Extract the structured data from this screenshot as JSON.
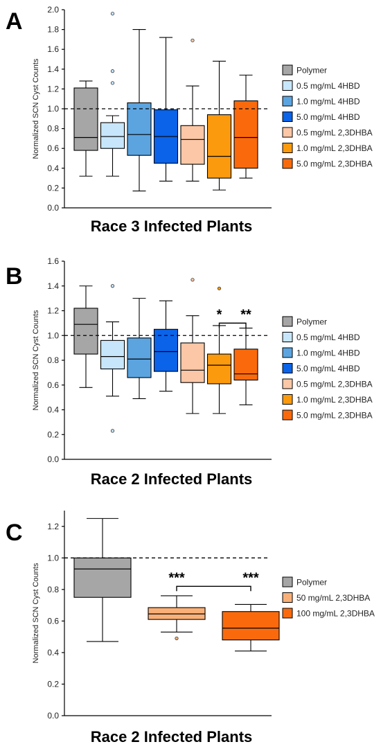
{
  "figure": {
    "panels": [
      {
        "letter": "A",
        "title": "Race 3 Infected Plants"
      },
      {
        "letter": "B",
        "title": "Race 2 Infected Plants"
      },
      {
        "letter": "C",
        "title": "Race 2 Infected Plants"
      }
    ]
  },
  "chart_data": [
    {
      "type": "box",
      "panel": "A",
      "title": "Race 3 Infected Plants",
      "ylabel": "Normalized SCN Cyst Counts",
      "ylim": [
        0,
        2.0
      ],
      "yticks": [
        "0.0",
        "0.2",
        "0.4",
        "0.6",
        "0.8",
        "1.0",
        "1.2",
        "1.4",
        "1.6",
        "1.8",
        "2.0"
      ],
      "reference_line": 1.0,
      "legend_position": "right",
      "series": [
        {
          "name": "Polymer",
          "color": "#a6a6a6",
          "min": 0.32,
          "q1": 0.58,
          "median": 0.71,
          "q3": 1.21,
          "max": 1.28,
          "outliers": []
        },
        {
          "name": "0.5 mg/mL 4HBD",
          "color": "#c7e6fb",
          "min": 0.32,
          "q1": 0.6,
          "median": 0.72,
          "q3": 0.86,
          "max": 0.93,
          "outliers": [
            1.26,
            1.38,
            1.96
          ]
        },
        {
          "name": "1.0 mg/mL 4HBD",
          "color": "#5ba4e0",
          "min": 0.17,
          "q1": 0.53,
          "median": 0.74,
          "q3": 1.06,
          "max": 1.8,
          "outliers": []
        },
        {
          "name": "5.0 mg/mL 4HBD",
          "color": "#0a63e8",
          "min": 0.27,
          "q1": 0.45,
          "median": 0.72,
          "q3": 0.99,
          "max": 1.72,
          "outliers": []
        },
        {
          "name": "0.5 mg/mL 2,3DHBA",
          "color": "#fbc7a6",
          "min": 0.27,
          "q1": 0.44,
          "median": 0.69,
          "q3": 0.83,
          "max": 1.23,
          "outliers": [
            1.69
          ]
        },
        {
          "name": "1.0 mg/mL 2,3DHBA",
          "color": "#fc9a0d",
          "min": 0.18,
          "q1": 0.3,
          "median": 0.52,
          "q3": 0.94,
          "max": 1.48,
          "outliers": []
        },
        {
          "name": "5.0 mg/mL 2,3DHBA",
          "color": "#fa6a0c",
          "min": 0.3,
          "q1": 0.4,
          "median": 0.71,
          "q3": 1.08,
          "max": 1.34,
          "outliers": []
        }
      ],
      "significance": []
    },
    {
      "type": "box",
      "panel": "B",
      "title": "Race 2 Infected Plants",
      "ylabel": "Normalized SCN Cyst Counts",
      "ylim": [
        0,
        1.6
      ],
      "yticks": [
        "0.0",
        "0.2",
        "0.4",
        "0.6",
        "0.8",
        "1.0",
        "1.2",
        "1.4",
        "1.6"
      ],
      "reference_line": 1.0,
      "legend_position": "right",
      "series": [
        {
          "name": "Polymer",
          "color": "#a6a6a6",
          "min": 0.58,
          "q1": 0.85,
          "median": 1.09,
          "q3": 1.22,
          "max": 1.4,
          "outliers": []
        },
        {
          "name": "0.5 mg/mL 4HBD",
          "color": "#c7e6fb",
          "min": 0.51,
          "q1": 0.73,
          "median": 0.83,
          "q3": 0.96,
          "max": 1.11,
          "outliers": [
            0.23,
            1.4
          ]
        },
        {
          "name": "1.0 mg/mL 4HBD",
          "color": "#5ba4e0",
          "min": 0.49,
          "q1": 0.66,
          "median": 0.81,
          "q3": 0.98,
          "max": 1.3,
          "outliers": []
        },
        {
          "name": "5.0 mg/mL 4HBD",
          "color": "#0a63e8",
          "min": 0.55,
          "q1": 0.71,
          "median": 0.87,
          "q3": 1.05,
          "max": 1.28,
          "outliers": []
        },
        {
          "name": "0.5 mg/mL 2,3DHBA",
          "color": "#fbc7a6",
          "min": 0.37,
          "q1": 0.62,
          "median": 0.72,
          "q3": 0.94,
          "max": 1.16,
          "outliers": [
            1.45
          ]
        },
        {
          "name": "1.0 mg/mL 2,3DHBA",
          "color": "#fc9a0d",
          "min": 0.37,
          "q1": 0.61,
          "median": 0.76,
          "q3": 0.85,
          "max": 1.08,
          "outliers": [
            1.38
          ]
        },
        {
          "name": "5.0 mg/mL 2,3DHBA",
          "color": "#fa6a0c",
          "min": 0.44,
          "q1": 0.64,
          "median": 0.69,
          "q3": 0.89,
          "max": 1.06,
          "outliers": []
        }
      ],
      "significance": [
        {
          "from": 5,
          "to": 6,
          "y": 1.1,
          "labels": [
            {
              "at": 5,
              "text": "*"
            },
            {
              "at": 6,
              "text": "**"
            }
          ]
        }
      ]
    },
    {
      "type": "box",
      "panel": "C",
      "title": "Race 2 Infected Plants",
      "ylabel": "Normalized SCN Cyst Counts",
      "ylim": [
        0,
        1.3
      ],
      "yticks": [
        "0.0",
        "0.2",
        "0.4",
        "0.6",
        "0.8",
        "1.0",
        "1.2"
      ],
      "reference_line": 1.0,
      "legend_position": "right",
      "series": [
        {
          "name": "Polymer",
          "color": "#a6a6a6",
          "min": 0.47,
          "q1": 0.75,
          "median": 0.93,
          "q3": 1.0,
          "max": 1.25,
          "outliers": []
        },
        {
          "name": "50 mg/mL 2,3DHBA",
          "color": "#f9b078",
          "min": 0.53,
          "q1": 0.61,
          "median": 0.645,
          "q3": 0.685,
          "max": 0.76,
          "outliers": [
            0.49
          ]
        },
        {
          "name": "100 mg/mL 2,3DHBA",
          "color": "#fa6a0c",
          "min": 0.41,
          "q1": 0.48,
          "median": 0.555,
          "q3": 0.66,
          "max": 0.705,
          "outliers": []
        }
      ],
      "significance": [
        {
          "from": 1,
          "to": 2,
          "y": 0.82,
          "labels": [
            {
              "at": 1,
              "text": "***"
            },
            {
              "at": 2,
              "text": "***"
            }
          ]
        }
      ]
    }
  ]
}
